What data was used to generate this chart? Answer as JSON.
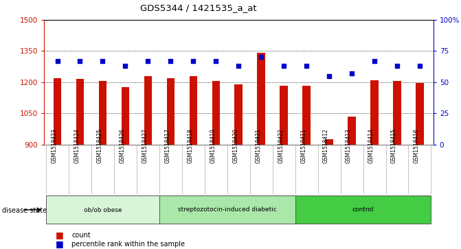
{
  "title": "GDS5344 / 1421535_a_at",
  "samples": [
    "GSM1518423",
    "GSM1518424",
    "GSM1518425",
    "GSM1518426",
    "GSM1518427",
    "GSM1518417",
    "GSM1518418",
    "GSM1518419",
    "GSM1518420",
    "GSM1518421",
    "GSM1518422",
    "GSM1518411",
    "GSM1518412",
    "GSM1518413",
    "GSM1518414",
    "GSM1518415",
    "GSM1518416"
  ],
  "counts": [
    1218,
    1217,
    1205,
    1175,
    1230,
    1218,
    1230,
    1207,
    1190,
    1340,
    1183,
    1183,
    925,
    1033,
    1210,
    1205,
    1197
  ],
  "percentile_ranks": [
    67,
    67,
    67,
    63,
    67,
    67,
    67,
    67,
    63,
    70,
    63,
    63,
    55,
    57,
    67,
    63,
    63
  ],
  "groups": [
    {
      "label": "ob/ob obese",
      "start": 0,
      "end": 5,
      "color": "#d8f5d8"
    },
    {
      "label": "streptozotocin-induced diabetic",
      "start": 5,
      "end": 11,
      "color": "#aae8aa"
    },
    {
      "label": "control",
      "start": 11,
      "end": 17,
      "color": "#44cc44"
    }
  ],
  "ylim_left": [
    900,
    1500
  ],
  "ylim_right": [
    0,
    100
  ],
  "yticks_left": [
    900,
    1050,
    1200,
    1350,
    1500
  ],
  "yticks_right": [
    0,
    25,
    50,
    75,
    100
  ],
  "bar_color": "#cc1100",
  "dot_color": "#0000cc",
  "plot_bg_color": "#ffffff",
  "grid_color": "#000000",
  "left_axis_color": "#cc1100",
  "right_axis_color": "#0000cc",
  "legend_count_label": "count",
  "legend_percentile_label": "percentile rank within the sample",
  "disease_state_label": "disease state"
}
